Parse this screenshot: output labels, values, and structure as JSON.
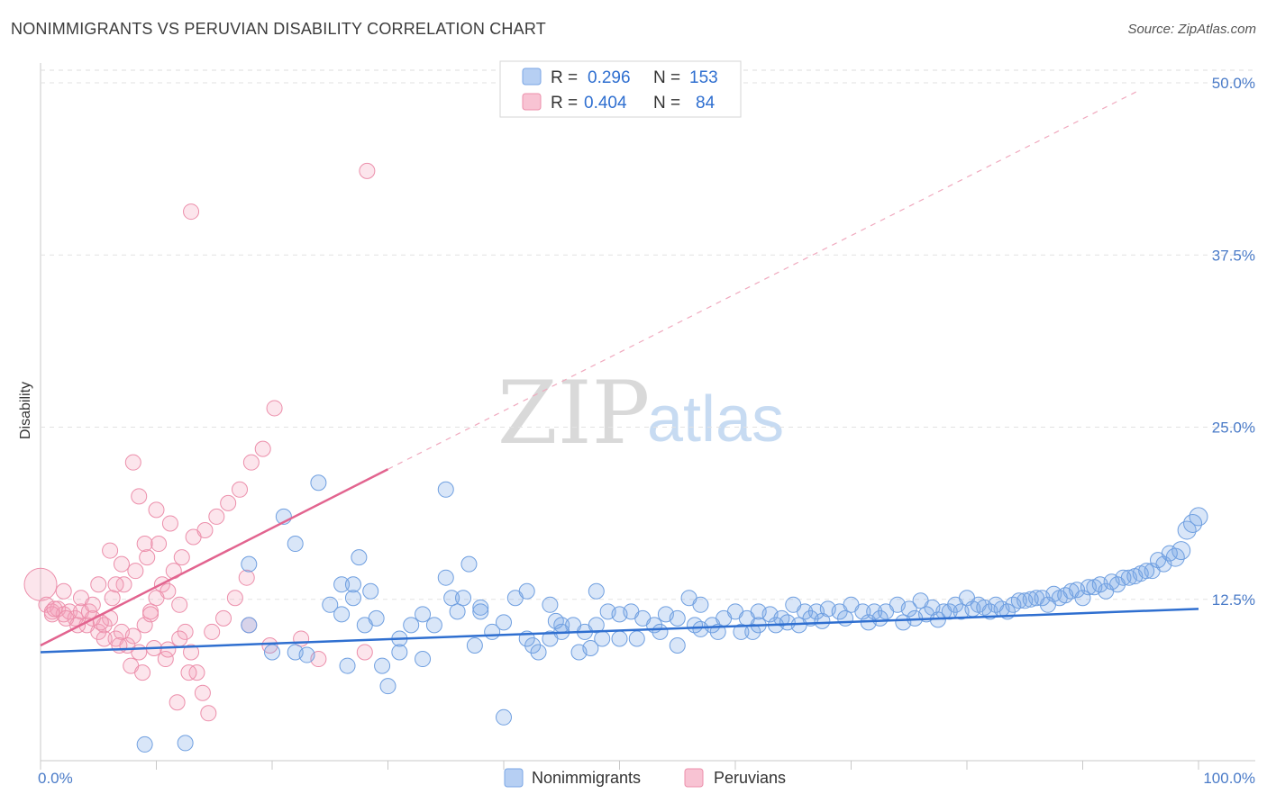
{
  "header": {
    "title": "NONIMMIGRANTS VS PERUVIAN DISABILITY CORRELATION CHART",
    "source": "Source: ZipAtlas.com"
  },
  "watermark": {
    "zip": "ZIP",
    "atlas": "atlas"
  },
  "colors": {
    "nonimmigrants_fill": "rgba(120,165,230,0.28)",
    "nonimmigrants_stroke": "#6f9fe0",
    "nonimmigrants_line": "#2f6fd0",
    "peruvians_fill": "rgba(245,160,185,0.28)",
    "peruvians_stroke": "#ec8fab",
    "peruvians_line": "#e2648f"
  },
  "legend": {
    "r_label": "R =",
    "n_label": "N =",
    "rows": [
      {
        "r": "0.296",
        "n": "153"
      },
      {
        "r": "0.404",
        "n": "84"
      }
    ]
  },
  "bottom_legend": [
    "Nonimmigrants",
    "Peruvians"
  ],
  "chart_data": {
    "type": "scatter",
    "title": "NONIMMIGRANTS VS PERUVIAN DISABILITY CORRELATION CHART",
    "xlabel": "",
    "ylabel": "Disability",
    "xlim": [
      0,
      100
    ],
    "ylim": [
      0,
      50
    ],
    "x_tick_labels": [
      "0.0%",
      "100.0%"
    ],
    "y_ticks": [
      12.5,
      25.0,
      37.5,
      50.0
    ],
    "y_tick_labels": [
      "12.5%",
      "25.0%",
      "37.5%",
      "50.0%"
    ],
    "series": [
      {
        "name": "Nonimmigrants",
        "r": 0.296,
        "n": 153,
        "trend": {
          "x": [
            0,
            100
          ],
          "y": [
            8.0,
            11.2
          ]
        },
        "points": [
          [
            9,
            1.2
          ],
          [
            12.5,
            1.3
          ],
          [
            40,
            3.2
          ],
          [
            30,
            5.5
          ],
          [
            29.5,
            7
          ],
          [
            28,
            10
          ],
          [
            25,
            11.5
          ],
          [
            21,
            18
          ],
          [
            24,
            20.5
          ],
          [
            35,
            20
          ],
          [
            22,
            16
          ],
          [
            26,
            13
          ],
          [
            27,
            13
          ],
          [
            18,
            14.5
          ],
          [
            27.5,
            15
          ],
          [
            34,
            10
          ],
          [
            36,
            11
          ],
          [
            38,
            11.3
          ],
          [
            40,
            10.2
          ],
          [
            41,
            12
          ],
          [
            42,
            12.5
          ],
          [
            44,
            11.5
          ],
          [
            45,
            10
          ],
          [
            46,
            10
          ],
          [
            35.5,
            12
          ],
          [
            37,
            14.5
          ],
          [
            36.5,
            12
          ],
          [
            35,
            13.5
          ],
          [
            33,
            10.8
          ],
          [
            32,
            10
          ],
          [
            31,
            9
          ],
          [
            26,
            10.8
          ],
          [
            28.5,
            12.5
          ],
          [
            29,
            10.5
          ],
          [
            27,
            12
          ],
          [
            22,
            8
          ],
          [
            23,
            7.8
          ],
          [
            26.5,
            7
          ],
          [
            31,
            8
          ],
          [
            18,
            10
          ],
          [
            20,
            8
          ],
          [
            42.5,
            8.5
          ],
          [
            44,
            9
          ],
          [
            45,
            9.5
          ],
          [
            47,
            9.5
          ],
          [
            48,
            10
          ],
          [
            49,
            11
          ],
          [
            50,
            10.8
          ],
          [
            51,
            11
          ],
          [
            52,
            10.5
          ],
          [
            53,
            10
          ],
          [
            54,
            10.8
          ],
          [
            55,
            10.5
          ],
          [
            56,
            12
          ],
          [
            57,
            11.5
          ],
          [
            58,
            10
          ],
          [
            59,
            10.5
          ],
          [
            60,
            11
          ],
          [
            61,
            10.5
          ],
          [
            62,
            11
          ],
          [
            63,
            10.8
          ],
          [
            64,
            10.5
          ],
          [
            65,
            11.5
          ],
          [
            66,
            11
          ],
          [
            67,
            11
          ],
          [
            68,
            11.2
          ],
          [
            69,
            11
          ],
          [
            70,
            11.5
          ],
          [
            71,
            11
          ],
          [
            72,
            11
          ],
          [
            73,
            11
          ],
          [
            74,
            11.5
          ],
          [
            75,
            11.2
          ],
          [
            76,
            11.8
          ],
          [
            77,
            11.3
          ],
          [
            78,
            11
          ],
          [
            79,
            11.5
          ],
          [
            80,
            12
          ],
          [
            81,
            11.5
          ],
          [
            82,
            11
          ],
          [
            83,
            11.2
          ],
          [
            84,
            11.5
          ],
          [
            85,
            11.8
          ],
          [
            86,
            12
          ],
          [
            87,
            11.5
          ],
          [
            88,
            12
          ],
          [
            89,
            12.5
          ],
          [
            90,
            12
          ],
          [
            91,
            12.8
          ],
          [
            92,
            12.5
          ],
          [
            93,
            13
          ],
          [
            94,
            13.5
          ],
          [
            95,
            13.8
          ],
          [
            96,
            14
          ],
          [
            97,
            14.5
          ],
          [
            98,
            15
          ],
          [
            98.5,
            15.5
          ],
          [
            99,
            17
          ],
          [
            100,
            18
          ],
          [
            42,
            9
          ],
          [
            43,
            8
          ],
          [
            39,
            9.5
          ],
          [
            38,
            11
          ],
          [
            46.5,
            8
          ],
          [
            47.5,
            8.3
          ],
          [
            48.5,
            9
          ],
          [
            50,
            9
          ],
          [
            51.5,
            9
          ],
          [
            53.5,
            9.5
          ],
          [
            55,
            8.5
          ],
          [
            56.5,
            10
          ],
          [
            57,
            9.7
          ],
          [
            58.5,
            9.5
          ],
          [
            60.5,
            9.5
          ],
          [
            61.5,
            9.5
          ],
          [
            62,
            10
          ],
          [
            63.5,
            10
          ],
          [
            64.5,
            10.2
          ],
          [
            65.5,
            10
          ],
          [
            66.5,
            10.5
          ],
          [
            67.5,
            10.3
          ],
          [
            69.5,
            10.5
          ],
          [
            71.5,
            10.2
          ],
          [
            72.5,
            10.5
          ],
          [
            74.5,
            10.2
          ],
          [
            75.5,
            10.5
          ],
          [
            76.5,
            10.8
          ],
          [
            77.5,
            10.4
          ],
          [
            78.5,
            11
          ],
          [
            79.5,
            11
          ],
          [
            80.5,
            11.2
          ],
          [
            81.5,
            11.3
          ],
          [
            82.5,
            11.5
          ],
          [
            83.5,
            11
          ],
          [
            84.5,
            11.8
          ],
          [
            85.5,
            11.9
          ],
          [
            86.5,
            12
          ],
          [
            87.5,
            12.3
          ],
          [
            88.5,
            12.2
          ],
          [
            89.5,
            12.6
          ],
          [
            90.5,
            12.8
          ],
          [
            91.5,
            13
          ],
          [
            92.5,
            13.2
          ],
          [
            93.5,
            13.5
          ],
          [
            94.5,
            13.6
          ],
          [
            95.5,
            14
          ],
          [
            96.5,
            14.8
          ],
          [
            97.5,
            15.3
          ],
          [
            99.5,
            17.5
          ],
          [
            48,
            12.5
          ],
          [
            33,
            7.5
          ],
          [
            37.5,
            8.5
          ],
          [
            44.5,
            10.3
          ]
        ]
      },
      {
        "name": "Peruvians",
        "r": 0.404,
        "n": 84,
        "trend": {
          "x": [
            0,
            30
          ],
          "y": [
            8.5,
            21.5
          ]
        },
        "trend_extension": {
          "x": [
            30,
            95
          ],
          "y": [
            21.5,
            49.5
          ]
        },
        "points": [
          [
            0,
            13
          ],
          [
            0.5,
            11.5
          ],
          [
            1,
            11
          ],
          [
            1.5,
            11.2
          ],
          [
            2,
            10.8
          ],
          [
            2.5,
            11
          ],
          [
            3,
            10.5
          ],
          [
            3.5,
            11
          ],
          [
            4,
            10
          ],
          [
            4.5,
            10.5
          ],
          [
            5,
            9.5
          ],
          [
            5.5,
            10
          ],
          [
            6,
            10.5
          ],
          [
            6.5,
            9
          ],
          [
            7,
            9.5
          ],
          [
            7.5,
            8.5
          ],
          [
            8,
            9.2
          ],
          [
            8.5,
            8
          ],
          [
            9,
            10
          ],
          [
            9.5,
            11
          ],
          [
            10,
            12
          ],
          [
            10.5,
            13
          ],
          [
            11,
            12.5
          ],
          [
            11.5,
            14
          ],
          [
            12,
            11.5
          ],
          [
            12.5,
            9.5
          ],
          [
            13,
            8
          ],
          [
            13.5,
            6.5
          ],
          [
            14,
            5
          ],
          [
            14.5,
            3.5
          ],
          [
            1,
            10.8
          ],
          [
            1.2,
            11.2
          ],
          [
            2.2,
            10.5
          ],
          [
            3.2,
            10
          ],
          [
            4.2,
            11
          ],
          [
            5.2,
            10.2
          ],
          [
            6.2,
            12
          ],
          [
            7.2,
            13
          ],
          [
            8.2,
            14
          ],
          [
            9.2,
            15
          ],
          [
            10.2,
            16
          ],
          [
            11.2,
            17.5
          ],
          [
            12.2,
            15
          ],
          [
            13.2,
            16.5
          ],
          [
            14.2,
            17
          ],
          [
            15.2,
            18
          ],
          [
            16.2,
            19
          ],
          [
            17.2,
            20
          ],
          [
            18.2,
            22
          ],
          [
            19.2,
            23
          ],
          [
            20.2,
            26
          ],
          [
            28.2,
            43.5
          ],
          [
            13,
            40.5
          ],
          [
            8,
            22
          ],
          [
            8.5,
            19.5
          ],
          [
            10,
            18.5
          ],
          [
            9,
            16
          ],
          [
            6,
            15.5
          ],
          [
            7,
            14.5
          ],
          [
            6.5,
            13
          ],
          [
            5,
            13
          ],
          [
            3.5,
            12
          ],
          [
            2,
            12.5
          ],
          [
            4.5,
            11.5
          ],
          [
            5.5,
            9
          ],
          [
            6.8,
            8.5
          ],
          [
            7.8,
            7
          ],
          [
            8.8,
            6.5
          ],
          [
            9.8,
            8.3
          ],
          [
            10.8,
            7.5
          ],
          [
            11.8,
            4.3
          ],
          [
            12.8,
            6.5
          ],
          [
            14.8,
            9.5
          ],
          [
            15.8,
            10.5
          ],
          [
            16.8,
            12
          ],
          [
            17.8,
            13.5
          ],
          [
            19.8,
            8.5
          ],
          [
            22.5,
            9
          ],
          [
            28,
            8
          ],
          [
            24,
            7.5
          ],
          [
            18,
            10
          ],
          [
            12,
            9
          ],
          [
            11,
            8.2
          ],
          [
            9.5,
            10.8
          ]
        ]
      }
    ]
  }
}
